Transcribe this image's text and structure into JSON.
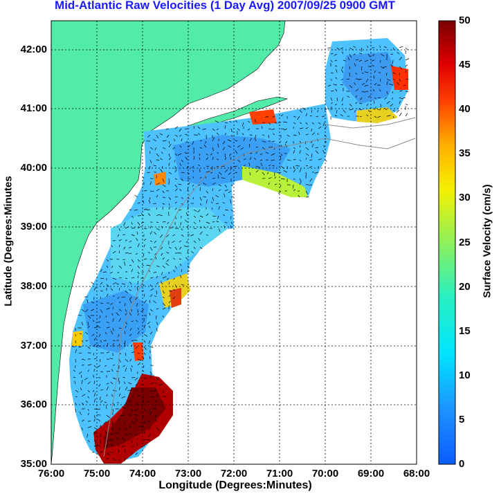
{
  "title": "Mid-Atlantic Raw Velocities (1 Day Avg) 2007/09/25 0900 GMT",
  "xlabel": "Longitude (Degrees:Minutes)",
  "ylabel": "Latitude (Degrees:Minutes",
  "colorbar_label": "Surface Velocity (cm/s)",
  "x_ticks": [
    "76:00",
    "75:00",
    "74:00",
    "73:00",
    "72:00",
    "71:00",
    "70:00",
    "69:00",
    "68:00"
  ],
  "y_ticks": [
    "42:00",
    "41:00",
    "40:00",
    "39:00",
    "38:00",
    "37:00",
    "36:00",
    "35:00"
  ],
  "colorbar_ticks": [
    "50",
    "45",
    "40",
    "35",
    "30",
    "25",
    "20",
    "15",
    "10",
    "5",
    "0"
  ],
  "colors": {
    "land": "#52eba8",
    "title": "#1a1aff",
    "grid": "#000000",
    "bathymetry": "#888888"
  },
  "map_extent": {
    "lon": [
      -76,
      -68
    ],
    "lat": [
      35,
      42.5
    ]
  },
  "colorbar_range": [
    0,
    50
  ],
  "colormap": "jet"
}
